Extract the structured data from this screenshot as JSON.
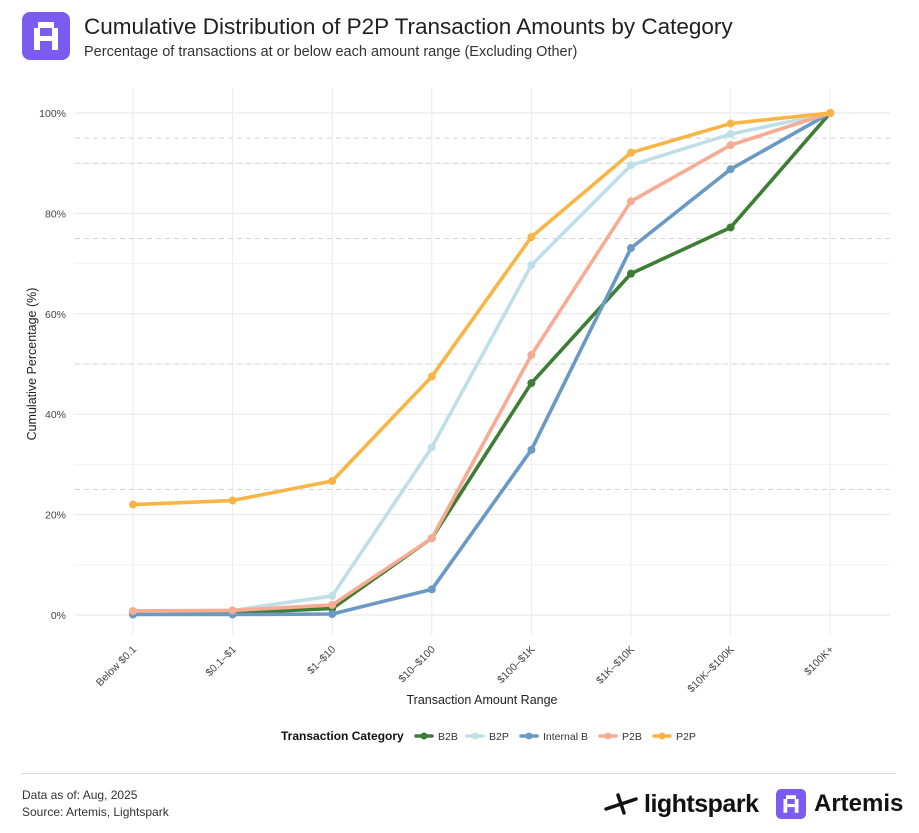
{
  "header": {
    "title": "Cumulative Distribution of P2P Transaction Amounts by Category",
    "subtitle": "Percentage of transactions at or below each amount range (Excluding Other)"
  },
  "footer": {
    "data_as_of": "Data as of: Aug, 2025",
    "source": "Source: Artemis, Lightspark",
    "brand1": "lightspark",
    "brand2": "Artemis"
  },
  "chart_data": {
    "type": "line",
    "title": "Cumulative Distribution of P2P Transaction Amounts by Category",
    "subtitle": "Percentage of transactions at or below each amount range (Excluding Other)",
    "xlabel": "Transaction Amount Range",
    "ylabel": "Cumulative Percentage (%)",
    "ylim": [
      0,
      100
    ],
    "yticks": [
      0,
      20,
      40,
      60,
      80,
      100
    ],
    "ytick_labels": [
      "0%",
      "20%",
      "40%",
      "60%",
      "80%",
      "100%"
    ],
    "categories": [
      "Below $0.1",
      "$0.1–$1",
      "$1–$10",
      "$10–$100",
      "$100–$1K",
      "$1K–$10K",
      "$10K–$100K",
      "$100K+"
    ],
    "reference_lines": [
      25,
      50,
      75,
      90,
      95
    ],
    "legend_title": "Transaction Category",
    "legend_position": "bottom",
    "series": [
      {
        "name": "B2B",
        "color": "#3d7d34",
        "values": [
          0.2,
          0.4,
          1.3,
          15.3,
          46.2,
          68.0,
          77.2,
          100
        ]
      },
      {
        "name": "B2P",
        "color": "#bfdfe8",
        "values": [
          0.7,
          0.9,
          3.8,
          33.4,
          69.7,
          89.6,
          95.8,
          100
        ]
      },
      {
        "name": "Internal B",
        "color": "#6a99c4",
        "values": [
          0.1,
          0.1,
          0.2,
          5.1,
          32.9,
          73.1,
          88.8,
          100
        ]
      },
      {
        "name": "P2B",
        "color": "#f6ac92",
        "values": [
          0.8,
          0.9,
          2.0,
          15.3,
          51.8,
          82.4,
          93.6,
          100
        ]
      },
      {
        "name": "P2P",
        "color": "#f8b545",
        "values": [
          22.0,
          22.8,
          26.7,
          47.5,
          75.3,
          92.1,
          97.9,
          100
        ]
      }
    ]
  }
}
